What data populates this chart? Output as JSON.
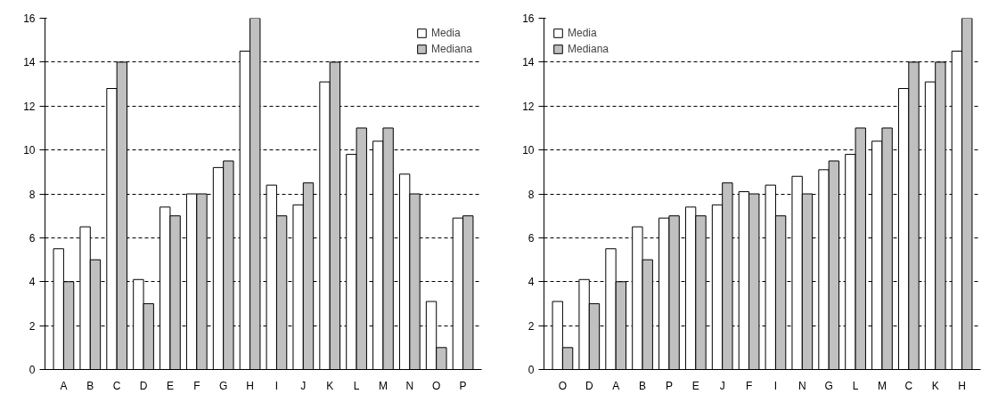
{
  "chart_data": [
    {
      "type": "bar",
      "categories": [
        "A",
        "B",
        "C",
        "D",
        "E",
        "F",
        "G",
        "H",
        "I",
        "J",
        "K",
        "L",
        "M",
        "N",
        "O",
        "P"
      ],
      "ylim": [
        0,
        16
      ],
      "yticks": [
        0,
        2,
        4,
        6,
        8,
        10,
        12,
        14,
        16
      ],
      "grid": "y",
      "legend": "top right",
      "series": [
        {
          "name": "Media",
          "color": "#ffffff",
          "values": [
            5.5,
            6.5,
            12.8,
            4.1,
            7.4,
            8,
            9.2,
            14.5,
            8.4,
            7.5,
            13.1,
            9.8,
            10.4,
            8.9,
            3.1,
            6.9
          ]
        },
        {
          "name": "Mediana",
          "color": "#c0c0c0",
          "values": [
            4,
            5,
            14,
            3,
            7,
            8,
            9.5,
            16,
            7,
            8.5,
            14,
            11,
            11,
            8,
            1,
            7
          ]
        }
      ]
    },
    {
      "type": "bar",
      "categories": [
        "O",
        "D",
        "A",
        "B",
        "P",
        "E",
        "J",
        "F",
        "I",
        "N",
        "G",
        "L",
        "M",
        "C",
        "K",
        "H"
      ],
      "ylim": [
        0,
        16
      ],
      "yticks": [
        0,
        2,
        4,
        6,
        8,
        10,
        12,
        14,
        16
      ],
      "grid": "y",
      "legend": "top left",
      "series": [
        {
          "name": "Media",
          "color": "#ffffff",
          "values": [
            3.1,
            4.1,
            5.5,
            6.5,
            6.9,
            7.4,
            7.5,
            8.1,
            8.4,
            8.8,
            9.1,
            9.8,
            10.4,
            12.8,
            13.1,
            14.5
          ]
        },
        {
          "name": "Mediana",
          "color": "#c0c0c0",
          "values": [
            1,
            3,
            4,
            5,
            7,
            7,
            8.5,
            8,
            7,
            8,
            9.5,
            11,
            11,
            14,
            14,
            16
          ]
        }
      ]
    }
  ]
}
